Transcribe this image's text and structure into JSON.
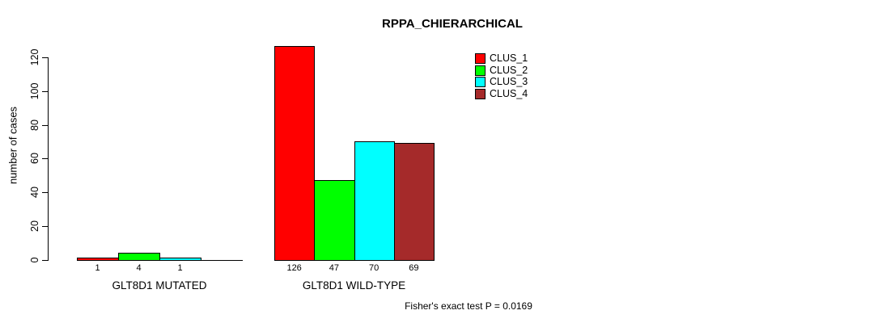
{
  "chart_data": {
    "type": "bar",
    "title": "RPPA_CHIERARCHICAL",
    "ylabel": "number of cases",
    "xlabel": "",
    "ylim": [
      0,
      126
    ],
    "yticks": [
      0,
      20,
      40,
      60,
      80,
      100,
      120
    ],
    "grid": false,
    "legend_position": "top-right-inside",
    "categories": [
      "GLT8D1 MUTATED",
      "GLT8D1 WILD-TYPE"
    ],
    "series": [
      {
        "name": "CLUS_1",
        "color": "#FF0000",
        "values": [
          1,
          126
        ]
      },
      {
        "name": "CLUS_2",
        "color": "#00FF00",
        "values": [
          4,
          47
        ]
      },
      {
        "name": "CLUS_3",
        "color": "#00FFFF",
        "values": [
          1,
          70
        ]
      },
      {
        "name": "CLUS_4",
        "color": "#A52A2A",
        "values": [
          0,
          69
        ]
      }
    ],
    "bar_labels": [
      [
        "1",
        "4",
        "1",
        ""
      ],
      [
        "126",
        "47",
        "70",
        "69"
      ]
    ],
    "annotation": "Fisher's exact test P = 0.0169"
  }
}
